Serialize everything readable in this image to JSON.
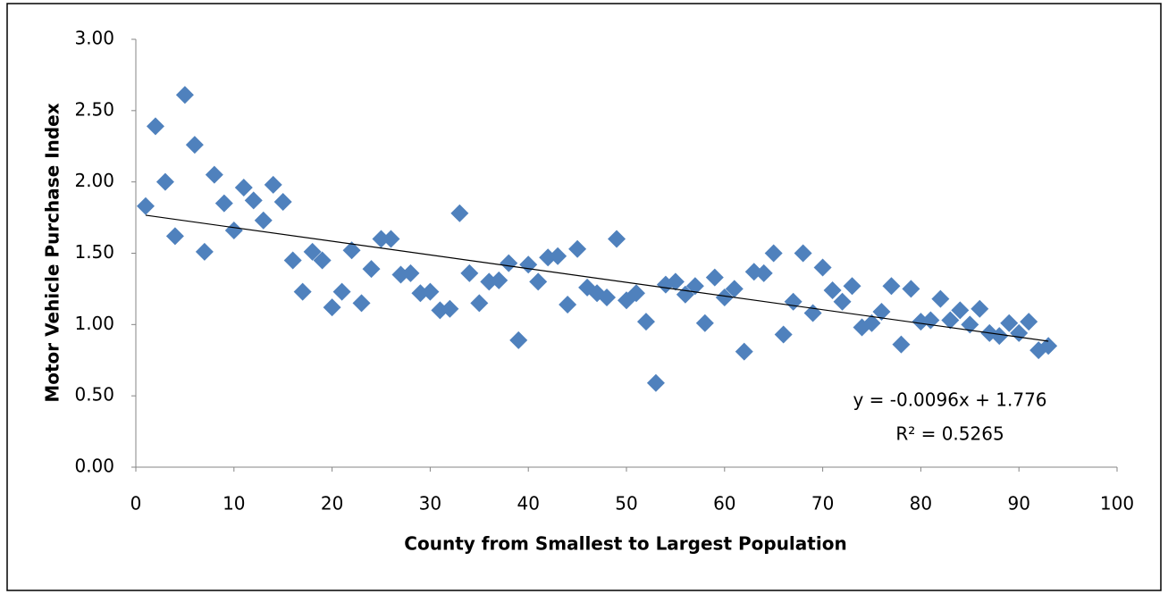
{
  "chart_data": {
    "type": "scatter",
    "x_label": "County from Smallest to Largest Population",
    "y_label": "Motor Vehicle Purchase Index",
    "xlim": [
      0,
      100
    ],
    "xticks": [
      0,
      10,
      20,
      30,
      40,
      50,
      60,
      70,
      80,
      90,
      100
    ],
    "ylim": [
      0,
      3
    ],
    "yticks": [
      {
        "value": 0,
        "label": "0.00"
      },
      {
        "value": 0.5,
        "label": "0.50"
      },
      {
        "value": 1,
        "label": "1.00"
      },
      {
        "value": 1.5,
        "label": "1.50"
      },
      {
        "value": 2,
        "label": "2.00"
      },
      {
        "value": 2.5,
        "label": "2.50"
      },
      {
        "value": 3,
        "label": "3.00"
      }
    ],
    "grid": false,
    "series": [
      {
        "color": "#4f81bd",
        "x": [
          1,
          2,
          3,
          4,
          5,
          6,
          7,
          8,
          9,
          10,
          11,
          12,
          13,
          14,
          15,
          16,
          17,
          18,
          19,
          20,
          21,
          22,
          23,
          24,
          25,
          26,
          27,
          28,
          29,
          30,
          31,
          32,
          33,
          34,
          35,
          36,
          37,
          38,
          39,
          40,
          41,
          42,
          43,
          44,
          45,
          46,
          47,
          48,
          49,
          50,
          51,
          52,
          53,
          54,
          55,
          56,
          57,
          58,
          59,
          60,
          61,
          62,
          63,
          64,
          65,
          66,
          67,
          68,
          69,
          70,
          71,
          72,
          73,
          74,
          75,
          76,
          77,
          78,
          79,
          80,
          81,
          82,
          83,
          84,
          85,
          86,
          87,
          88,
          89,
          90,
          91,
          92,
          93
        ],
        "values": [
          1.83,
          2.39,
          2.0,
          1.62,
          2.61,
          2.26,
          1.51,
          2.05,
          1.85,
          1.66,
          1.96,
          1.87,
          1.73,
          1.98,
          1.86,
          1.45,
          1.23,
          1.51,
          1.45,
          1.12,
          1.23,
          1.52,
          1.15,
          1.39,
          1.6,
          1.6,
          1.35,
          1.36,
          1.22,
          1.23,
          1.1,
          1.11,
          1.78,
          1.36,
          1.15,
          1.3,
          1.31,
          1.43,
          0.89,
          1.42,
          1.3,
          1.47,
          1.48,
          1.14,
          1.53,
          1.26,
          1.22,
          1.19,
          1.6,
          1.17,
          1.22,
          1.02,
          0.59,
          1.28,
          1.3,
          1.21,
          1.27,
          1.01,
          1.33,
          1.19,
          1.25,
          0.81,
          1.37,
          1.36,
          1.5,
          0.93,
          1.16,
          1.5,
          1.08,
          1.4,
          1.24,
          1.16,
          1.27,
          0.98,
          1.01,
          1.09,
          1.27,
          0.86,
          1.25,
          1.02,
          1.03,
          1.18,
          1.03,
          1.1,
          1.0,
          1.11,
          0.94,
          0.92,
          1.01,
          0.94,
          1.02,
          0.82,
          0.85
        ]
      }
    ],
    "trendline": {
      "slope": -0.0096,
      "intercept": 1.776,
      "color": "#000000",
      "equation": "y = -0.0096x + 1.776",
      "r2": "R² = 0.5265"
    }
  }
}
